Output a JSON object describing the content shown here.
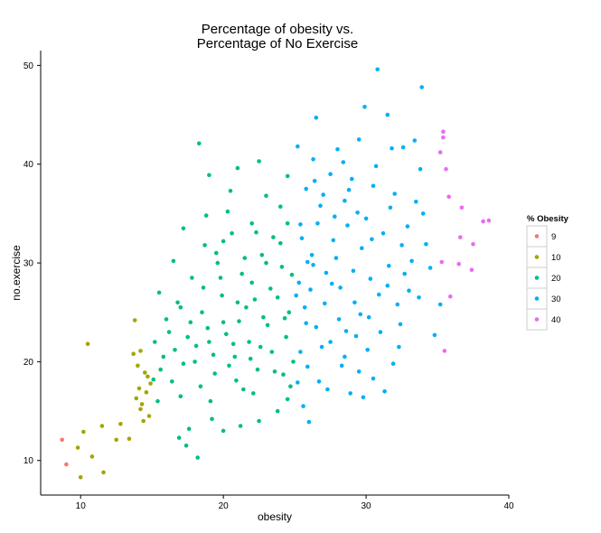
{
  "chart_data": {
    "type": "scatter",
    "title_lines": [
      "Percentage of obesity vs.",
      "Percentage of No Exercise"
    ],
    "xlabel": "obesity",
    "ylabel": "no.exercise",
    "xlim": [
      7.2,
      40.0
    ],
    "ylim": [
      6.5,
      51.5
    ],
    "x_ticks": [
      "10",
      "20",
      "30",
      "40"
    ],
    "y_ticks": [
      "10",
      "20",
      "30",
      "40",
      "50"
    ],
    "grid": false,
    "legend": {
      "title": "% Obesity",
      "position": "right",
      "entries": [
        {
          "label": "9",
          "color": "#F8766D"
        },
        {
          "label": "10",
          "color": "#A3A500"
        },
        {
          "label": "20",
          "color": "#00BF7D"
        },
        {
          "label": "30",
          "color": "#00B0F6"
        },
        {
          "label": "40",
          "color": "#E76BF3"
        }
      ]
    },
    "series": [
      {
        "group": "9",
        "color": "#F8766D",
        "points": [
          [
            8.7,
            12.1
          ],
          [
            9.0,
            9.6
          ]
        ]
      },
      {
        "group": "10",
        "color": "#A3A500",
        "points": [
          [
            10.5,
            21.8
          ],
          [
            10.2,
            12.9
          ],
          [
            9.8,
            11.3
          ],
          [
            10.0,
            8.3
          ],
          [
            10.8,
            10.4
          ],
          [
            11.5,
            13.5
          ],
          [
            11.6,
            8.8
          ],
          [
            12.5,
            12.1
          ],
          [
            12.8,
            13.7
          ],
          [
            13.4,
            12.2
          ],
          [
            13.8,
            24.2
          ],
          [
            13.7,
            20.8
          ],
          [
            14.2,
            21.1
          ],
          [
            14.0,
            19.6
          ],
          [
            14.5,
            18.9
          ],
          [
            14.1,
            17.3
          ],
          [
            14.6,
            16.9
          ],
          [
            14.3,
            15.7
          ],
          [
            14.8,
            14.5
          ],
          [
            14.4,
            14.0
          ],
          [
            13.9,
            16.3
          ],
          [
            14.7,
            18.5
          ],
          [
            14.9,
            17.8
          ],
          [
            14.2,
            15.2
          ]
        ]
      },
      {
        "group": "20",
        "color": "#00BF7D",
        "points": [
          [
            18.3,
            42.1
          ],
          [
            19.0,
            38.9
          ],
          [
            21.0,
            39.6
          ],
          [
            22.5,
            40.3
          ],
          [
            24.5,
            38.8
          ],
          [
            20.5,
            37.3
          ],
          [
            23.0,
            36.8
          ],
          [
            17.2,
            33.5
          ],
          [
            18.8,
            34.8
          ],
          [
            19.5,
            31.0
          ],
          [
            24.0,
            35.7
          ],
          [
            22.0,
            34.0
          ],
          [
            20.0,
            32.2
          ],
          [
            21.5,
            30.5
          ],
          [
            16.5,
            30.2
          ],
          [
            17.8,
            28.5
          ],
          [
            15.5,
            27.0
          ],
          [
            16.0,
            24.3
          ],
          [
            15.2,
            22.0
          ],
          [
            15.8,
            20.5
          ],
          [
            16.4,
            18.0
          ],
          [
            17.0,
            16.5
          ],
          [
            17.6,
            13.2
          ],
          [
            17.4,
            11.5
          ],
          [
            18.2,
            10.3
          ],
          [
            16.9,
            12.3
          ],
          [
            15.1,
            18.2
          ],
          [
            15.4,
            16.0
          ],
          [
            19.2,
            14.2
          ],
          [
            20.0,
            13.0
          ],
          [
            21.2,
            13.5
          ],
          [
            22.5,
            14.0
          ],
          [
            23.8,
            15.0
          ],
          [
            24.5,
            16.2
          ],
          [
            24.7,
            17.5
          ],
          [
            18.0,
            20.0
          ],
          [
            19.0,
            22.0
          ],
          [
            20.0,
            24.0
          ],
          [
            21.0,
            26.0
          ],
          [
            22.0,
            28.0
          ],
          [
            23.0,
            30.0
          ],
          [
            24.0,
            32.0
          ],
          [
            24.5,
            34.0
          ],
          [
            18.5,
            25.0
          ],
          [
            17.5,
            22.5
          ],
          [
            16.8,
            26.0
          ],
          [
            19.8,
            28.5
          ],
          [
            20.8,
            20.5
          ],
          [
            21.8,
            22.0
          ],
          [
            22.8,
            24.5
          ],
          [
            23.8,
            26.5
          ],
          [
            24.8,
            28.8
          ],
          [
            18.4,
            17.5
          ],
          [
            19.4,
            18.8
          ],
          [
            20.4,
            19.6
          ],
          [
            21.4,
            17.2
          ],
          [
            22.4,
            19.2
          ],
          [
            23.4,
            21.0
          ],
          [
            24.4,
            22.5
          ],
          [
            17.2,
            19.8
          ],
          [
            18.6,
            27.5
          ],
          [
            19.6,
            30.0
          ],
          [
            20.6,
            33.0
          ],
          [
            21.6,
            25.5
          ],
          [
            22.6,
            21.5
          ],
          [
            23.6,
            19.0
          ],
          [
            24.6,
            25.0
          ],
          [
            16.2,
            23.0
          ],
          [
            17.0,
            25.5
          ],
          [
            15.6,
            19.2
          ],
          [
            18.9,
            23.4
          ],
          [
            20.2,
            22.8
          ],
          [
            21.1,
            24.1
          ],
          [
            22.2,
            26.3
          ],
          [
            23.3,
            27.4
          ],
          [
            24.1,
            29.6
          ],
          [
            19.3,
            20.7
          ],
          [
            20.7,
            21.8
          ],
          [
            21.9,
            20.3
          ],
          [
            23.1,
            23.7
          ],
          [
            24.3,
            24.4
          ],
          [
            18.1,
            21.6
          ],
          [
            17.7,
            24.0
          ],
          [
            16.6,
            21.2
          ],
          [
            19.9,
            26.7
          ],
          [
            21.3,
            28.9
          ],
          [
            22.7,
            30.8
          ],
          [
            23.5,
            32.6
          ],
          [
            20.9,
            18.1
          ],
          [
            22.1,
            16.8
          ],
          [
            19.1,
            16.0
          ],
          [
            24.9,
            20.0
          ],
          [
            24.2,
            18.7
          ],
          [
            18.7,
            31.8
          ],
          [
            20.3,
            35.2
          ],
          [
            22.3,
            33.1
          ]
        ]
      },
      {
        "group": "30",
        "color": "#00B0F6",
        "points": [
          [
            30.8,
            49.6
          ],
          [
            33.9,
            47.8
          ],
          [
            26.5,
            44.7
          ],
          [
            29.9,
            45.8
          ],
          [
            31.5,
            45.0
          ],
          [
            33.4,
            42.4
          ],
          [
            28.0,
            41.5
          ],
          [
            29.5,
            42.5
          ],
          [
            31.8,
            41.6
          ],
          [
            32.6,
            41.7
          ],
          [
            25.2,
            41.8
          ],
          [
            26.3,
            40.5
          ],
          [
            27.5,
            39.0
          ],
          [
            29.0,
            38.5
          ],
          [
            30.5,
            37.8
          ],
          [
            32.0,
            37.0
          ],
          [
            33.5,
            36.2
          ],
          [
            34.0,
            35.0
          ],
          [
            25.8,
            37.5
          ],
          [
            26.8,
            35.8
          ],
          [
            28.5,
            36.3
          ],
          [
            30.0,
            34.5
          ],
          [
            31.2,
            33.0
          ],
          [
            32.5,
            31.8
          ],
          [
            33.2,
            30.2
          ],
          [
            34.5,
            29.5
          ],
          [
            25.5,
            32.5
          ],
          [
            26.2,
            30.8
          ],
          [
            27.2,
            29.0
          ],
          [
            28.2,
            27.5
          ],
          [
            29.2,
            26.0
          ],
          [
            30.2,
            24.5
          ],
          [
            31.0,
            23.0
          ],
          [
            32.2,
            25.8
          ],
          [
            33.0,
            27.2
          ],
          [
            25.3,
            28.0
          ],
          [
            25.7,
            25.5
          ],
          [
            26.5,
            23.5
          ],
          [
            27.5,
            22.0
          ],
          [
            28.5,
            20.5
          ],
          [
            29.5,
            19.0
          ],
          [
            30.5,
            18.3
          ],
          [
            25.4,
            21.0
          ],
          [
            25.9,
            19.5
          ],
          [
            26.7,
            18.0
          ],
          [
            25.6,
            15.5
          ],
          [
            26.0,
            13.9
          ],
          [
            28.9,
            16.8
          ],
          [
            29.8,
            16.4
          ],
          [
            31.3,
            17.0
          ],
          [
            32.3,
            21.5
          ],
          [
            34.8,
            22.7
          ],
          [
            35.2,
            25.8
          ],
          [
            33.7,
            26.5
          ],
          [
            29.7,
            31.5
          ],
          [
            28.7,
            33.8
          ],
          [
            27.7,
            32.3
          ],
          [
            26.6,
            34.0
          ],
          [
            27.9,
            30.5
          ],
          [
            29.1,
            29.2
          ],
          [
            30.3,
            28.4
          ],
          [
            31.5,
            27.7
          ],
          [
            32.7,
            28.9
          ],
          [
            25.1,
            26.7
          ],
          [
            26.1,
            27.3
          ],
          [
            27.1,
            25.9
          ],
          [
            28.1,
            24.3
          ],
          [
            29.3,
            22.6
          ],
          [
            30.1,
            21.2
          ],
          [
            25.8,
            23.9
          ],
          [
            26.9,
            21.5
          ],
          [
            28.3,
            19.6
          ],
          [
            25.2,
            17.9
          ],
          [
            27.3,
            17.2
          ],
          [
            31.9,
            19.8
          ],
          [
            32.9,
            33.7
          ],
          [
            31.7,
            35.6
          ],
          [
            30.7,
            39.8
          ],
          [
            28.4,
            40.2
          ],
          [
            27.0,
            36.9
          ],
          [
            26.4,
            38.3
          ],
          [
            34.2,
            31.9
          ],
          [
            33.8,
            39.5
          ],
          [
            30.9,
            26.8
          ],
          [
            29.6,
            24.8
          ],
          [
            28.6,
            23.1
          ],
          [
            27.6,
            27.9
          ],
          [
            26.3,
            29.8
          ],
          [
            25.4,
            33.9
          ],
          [
            25.9,
            30.1
          ],
          [
            32.4,
            23.8
          ],
          [
            31.6,
            29.7
          ],
          [
            30.4,
            32.4
          ],
          [
            29.4,
            35.1
          ],
          [
            28.8,
            37.4
          ],
          [
            27.8,
            34.7
          ]
        ]
      },
      {
        "group": "40",
        "color": "#E76BF3",
        "points": [
          [
            35.4,
            43.3
          ],
          [
            35.4,
            42.7
          ],
          [
            35.2,
            41.2
          ],
          [
            35.6,
            39.5
          ],
          [
            35.8,
            36.7
          ],
          [
            36.7,
            35.6
          ],
          [
            38.2,
            34.2
          ],
          [
            38.6,
            34.3
          ],
          [
            36.6,
            32.6
          ],
          [
            37.5,
            31.9
          ],
          [
            35.3,
            30.1
          ],
          [
            36.5,
            29.9
          ],
          [
            37.4,
            29.3
          ],
          [
            35.9,
            26.6
          ],
          [
            35.5,
            21.1
          ]
        ]
      }
    ]
  }
}
